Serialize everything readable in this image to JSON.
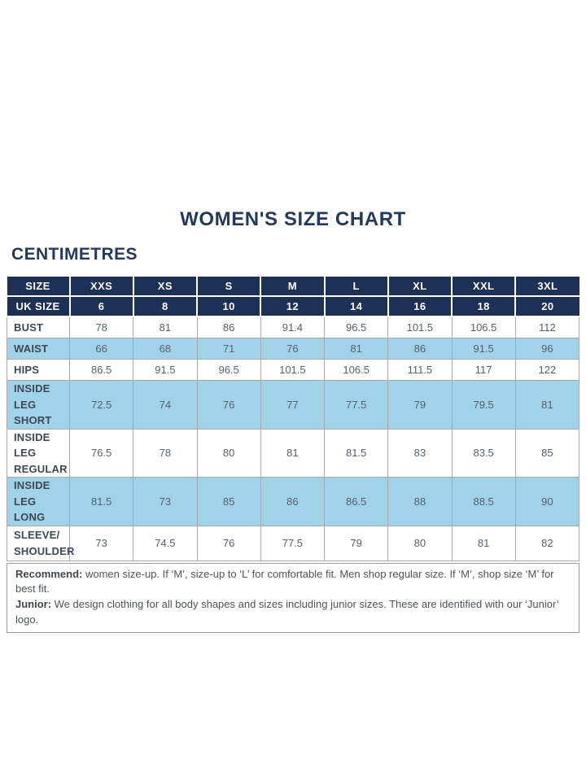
{
  "chart_data": {
    "type": "table",
    "title": "WOMEN'S SIZE CHART",
    "unit": "CENTIMETRES",
    "columns": [
      "SIZE",
      "XXS",
      "XS",
      "S",
      "M",
      "L",
      "XL",
      "XXL",
      "3XL"
    ],
    "uk_sizes": {
      "label": "UK SIZE",
      "values": [
        6,
        8,
        10,
        12,
        14,
        16,
        18,
        20
      ]
    },
    "rows": [
      {
        "label": "BUST",
        "values": [
          78,
          81,
          86,
          91.4,
          96.5,
          101.5,
          106.5,
          112
        ],
        "highlight": false
      },
      {
        "label": "WAIST",
        "values": [
          66,
          68,
          71,
          76,
          81,
          86,
          91.5,
          96
        ],
        "highlight": true
      },
      {
        "label": "HIPS",
        "values": [
          86.5,
          91.5,
          96.5,
          101.5,
          106.5,
          111.5,
          117,
          122
        ],
        "highlight": false
      },
      {
        "label": "INSIDE LEG\nSHORT",
        "values": [
          72.5,
          74,
          76,
          77,
          77.5,
          79,
          79.5,
          81
        ],
        "highlight": true
      },
      {
        "label": "INSIDE LEG\nREGULAR",
        "values": [
          76.5,
          78,
          80,
          81,
          81.5,
          83,
          83.5,
          85
        ],
        "highlight": false
      },
      {
        "label": "INSIDE LEG\nLONG",
        "values": [
          81.5,
          73,
          85,
          86,
          86.5,
          88,
          88.5,
          90
        ],
        "highlight": true
      },
      {
        "label": "SLEEVE/\nSHOULDER",
        "values": [
          73,
          74.5,
          76,
          77.5,
          79,
          80,
          81,
          82
        ],
        "highlight": false
      }
    ]
  },
  "footer": {
    "recommend_label": "Recommend:",
    "recommend_text": " women size-up. If ‘M’, size-up to ‘L’ for comfortable fit. Men shop regular size. If ‘M’, shop size ‘M’ for best fit.",
    "junior_label": "Junior:",
    "junior_text": " We design clothing for all body shapes and sizes including junior sizes. These are identified with our ‘Junior’ logo."
  },
  "colors": {
    "header_navy": "#1d3156",
    "highlight_blue": "#a1d3e8",
    "border_grey": "#a9a9a9",
    "title_navy": "#243a5c"
  }
}
